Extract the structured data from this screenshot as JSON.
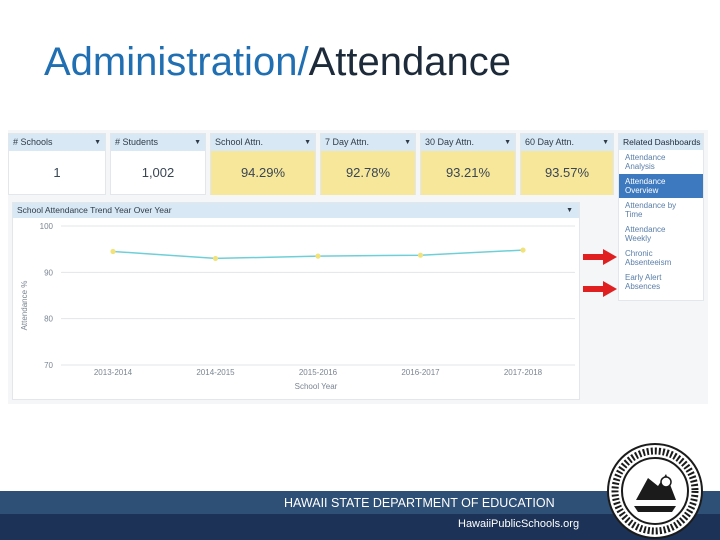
{
  "title": {
    "part1": "Administration/",
    "part2": "Attendance"
  },
  "kpis": [
    {
      "label": "# Schools",
      "value": "1"
    },
    {
      "label": "# Students",
      "value": "1,002"
    },
    {
      "label": "School Attn.",
      "value": "94.29%"
    },
    {
      "label": "7 Day Attn.",
      "value": "92.78%"
    },
    {
      "label": "30 Day Attn.",
      "value": "93.21%"
    },
    {
      "label": "60 Day Attn.",
      "value": "93.57%"
    }
  ],
  "related": {
    "header": "Related Dashboards",
    "items": [
      {
        "line1": "Attendance",
        "line2": "Analysis"
      },
      {
        "line1": "Attendance",
        "line2": "Overview"
      },
      {
        "line1": "Attendance by",
        "line2": "Time"
      },
      {
        "line1": "Attendance",
        "line2": "Weekly"
      },
      {
        "line1": "Chronic",
        "line2": "Absenteeism"
      },
      {
        "line1": "Early Alert",
        "line2": "Absences"
      }
    ]
  },
  "chart_header": "School   Attendance Trend   Year Over Year",
  "chart_data": {
    "type": "line",
    "categories": [
      "2013-2014",
      "2014-2015",
      "2015-2016",
      "2016-2017",
      "2017-2018"
    ],
    "values": [
      94.5,
      93.0,
      93.5,
      93.7,
      94.8
    ],
    "xlabel": "School Year",
    "ylabel": "Attendance %",
    "ylim": [
      70,
      100
    ],
    "yticks": [
      "70",
      "80",
      "90",
      "100"
    ],
    "line_color": "#6fcfd8",
    "marker_color": "#f2e27a"
  },
  "footer": {
    "org": "HAWAII STATE DEPARTMENT OF EDUCATION",
    "url": "HawaiiPublicSchools.org"
  },
  "colors": {
    "title_blue": "#1f6fb2",
    "footer_dark": "#1c3357",
    "kpi_yellow": "#f7e79a",
    "arrow_red": "#e02020"
  }
}
